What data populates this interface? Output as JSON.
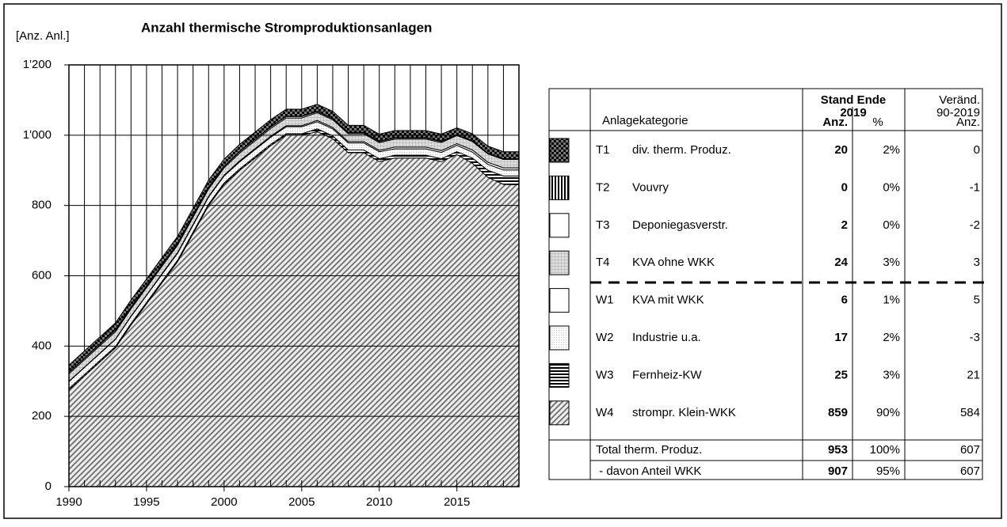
{
  "chart_data": {
    "type": "stacked_area",
    "title": "Anzahl thermische Stromproduktionsanlagen",
    "y_label": "[Anz. Anl.]",
    "x": [
      1990,
      1991,
      1992,
      1993,
      1994,
      1995,
      1996,
      1997,
      1998,
      1999,
      2000,
      2001,
      2002,
      2003,
      2004,
      2005,
      2006,
      2007,
      2008,
      2009,
      2010,
      2011,
      2012,
      2013,
      2014,
      2015,
      2016,
      2017,
      2018,
      2019
    ],
    "xlim": [
      1990,
      2019
    ],
    "xticks": [
      1990,
      1995,
      2000,
      2005,
      2010,
      2015
    ],
    "ylim": [
      0,
      1200
    ],
    "yticks": [
      0,
      200,
      400,
      600,
      800,
      {
        "value": 1000,
        "label": "1'000"
      },
      {
        "value": 1200,
        "label": "1'200"
      }
    ],
    "grid": true,
    "series": [
      {
        "code": "T1",
        "name": "div. therm. Produz.",
        "values": [
          20,
          20,
          20,
          20,
          20,
          20,
          20,
          20,
          20,
          20,
          20,
          20,
          20,
          20,
          20,
          20,
          20,
          20,
          20,
          20,
          20,
          20,
          20,
          20,
          20,
          20,
          20,
          20,
          20,
          20
        ],
        "share": "2%",
        "change": "0"
      },
      {
        "code": "T2",
        "name": "Vouvry",
        "values": [
          1,
          1,
          1,
          1,
          1,
          1,
          1,
          1,
          1,
          1,
          1,
          1,
          1,
          1,
          1,
          1,
          1,
          1,
          1,
          1,
          1,
          1,
          1,
          1,
          1,
          0,
          0,
          0,
          0,
          0
        ],
        "share": "0%",
        "change": "-1"
      },
      {
        "code": "T3",
        "name": "Deponiegasverstr.",
        "values": [
          4,
          4,
          4,
          4,
          4,
          4,
          4,
          4,
          4,
          4,
          4,
          4,
          4,
          4,
          4,
          4,
          3,
          3,
          3,
          3,
          3,
          3,
          3,
          3,
          3,
          2,
          2,
          2,
          2,
          2
        ],
        "share": "0%",
        "change": "-2"
      },
      {
        "code": "T4",
        "name": "KVA ohne WKK",
        "values": [
          21,
          21,
          21,
          21,
          21,
          21,
          21,
          21,
          21,
          21,
          21,
          22,
          22,
          22,
          22,
          22,
          22,
          22,
          22,
          22,
          22,
          23,
          23,
          23,
          23,
          23,
          24,
          24,
          24,
          24
        ],
        "share": "3%",
        "change": "3"
      },
      {
        "code": "W1",
        "name": "KVA mit WKK",
        "values": [
          1,
          1,
          1,
          1,
          1,
          1,
          2,
          2,
          2,
          2,
          2,
          3,
          3,
          3,
          3,
          3,
          4,
          4,
          4,
          4,
          4,
          5,
          5,
          5,
          5,
          5,
          6,
          6,
          6,
          6
        ],
        "share": "1%",
        "change": "5"
      },
      {
        "code": "W2",
        "name": "Industrie u.a.",
        "values": [
          20,
          20,
          20,
          20,
          20,
          20,
          20,
          20,
          20,
          20,
          20,
          20,
          20,
          20,
          20,
          20,
          20,
          20,
          20,
          20,
          20,
          18,
          18,
          18,
          18,
          18,
          17,
          17,
          17,
          17
        ],
        "share": "2%",
        "change": "-3"
      },
      {
        "code": "W3",
        "name": "Fernheiz-KW",
        "values": [
          4,
          4,
          4,
          4,
          4,
          4,
          4,
          4,
          4,
          4,
          4,
          4,
          4,
          4,
          4,
          4,
          8,
          8,
          8,
          8,
          8,
          8,
          8,
          8,
          8,
          8,
          15,
          20,
          24,
          25
        ],
        "share": "3%",
        "change": "21"
      },
      {
        "code": "W4",
        "name": "strompr. Klein-WKK",
        "values": [
          275,
          315,
          355,
          395,
          460,
          520,
          580,
          640,
          720,
          800,
          860,
          900,
          935,
          970,
          1000,
          1000,
          1010,
          990,
          950,
          950,
          925,
          935,
          935,
          935,
          925,
          945,
          920,
          880,
          860,
          859
        ],
        "share": "90%",
        "change": "584"
      }
    ],
    "table": {
      "category_header": "Anlagekategorie",
      "stand_header": "Stand Ende",
      "year_header": "2019",
      "count_header": "Anz.",
      "share_header": "%",
      "change_header": "Veränd.",
      "change_period": "90-2019",
      "change_unit": "Anz.",
      "totals": [
        {
          "label": "Total therm. Produz.",
          "count": "953",
          "share": "100%",
          "change": "607"
        },
        {
          "label": " - davon Anteil WKK",
          "count": "907",
          "share": "95%",
          "change": "607"
        }
      ]
    }
  }
}
